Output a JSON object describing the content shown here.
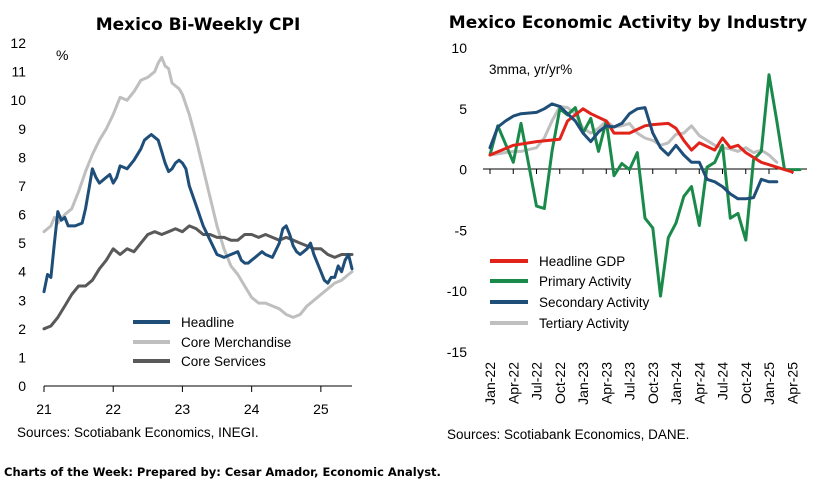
{
  "footer": "Charts of the Week: Prepared by: Cesar Amador, Economic Analyst.",
  "chart_data": [
    {
      "type": "line",
      "title": "Mexico Bi-Weekly CPI",
      "ylabel": "%",
      "ylim": [
        0,
        12
      ],
      "yticks": [
        "0",
        "1",
        "2",
        "3",
        "4",
        "5",
        "6",
        "7",
        "8",
        "9",
        "10",
        "11",
        "12"
      ],
      "xlim": [
        21,
        25.45
      ],
      "xticks": [
        "21",
        "22",
        "23",
        "24",
        "25"
      ],
      "source": "Sources: Scotiabank Economics, INEGI.",
      "grid": false,
      "legend_position": "bottom-center",
      "colors": {
        "Headline": "#1f4e79",
        "Core Merchandise": "#bfbfbf",
        "Core Services": "#595959"
      },
      "series": [
        {
          "name": "Headline",
          "x": [
            21.0,
            21.05,
            21.1,
            21.15,
            21.2,
            21.25,
            21.3,
            21.35,
            21.45,
            21.55,
            21.6,
            21.65,
            21.7,
            21.75,
            21.8,
            21.9,
            21.95,
            22.0,
            22.05,
            22.1,
            22.2,
            22.3,
            22.4,
            22.45,
            22.5,
            22.55,
            22.6,
            22.65,
            22.7,
            22.75,
            22.8,
            22.85,
            22.9,
            22.95,
            23.0,
            23.05,
            23.1,
            23.2,
            23.3,
            23.4,
            23.5,
            23.6,
            23.7,
            23.8,
            23.85,
            23.9,
            23.95,
            24.0,
            24.05,
            24.1,
            24.15,
            24.2,
            24.3,
            24.4,
            24.45,
            24.5,
            24.55,
            24.6,
            24.65,
            24.7,
            24.75,
            24.8,
            24.85,
            24.9,
            24.95,
            25.0,
            25.05,
            25.1,
            25.15,
            25.2,
            25.25,
            25.3,
            25.35,
            25.4,
            25.45
          ],
          "y": [
            3.3,
            3.9,
            3.8,
            5.0,
            6.1,
            5.8,
            5.9,
            5.6,
            5.6,
            5.7,
            6.2,
            6.9,
            7.6,
            7.3,
            7.1,
            7.3,
            7.4,
            7.1,
            7.3,
            7.7,
            7.6,
            7.9,
            8.3,
            8.6,
            8.7,
            8.8,
            8.7,
            8.6,
            8.2,
            7.8,
            7.5,
            7.6,
            7.8,
            7.9,
            7.8,
            7.6,
            7.0,
            6.3,
            5.6,
            5.1,
            4.6,
            4.5,
            4.6,
            4.7,
            4.4,
            4.3,
            4.3,
            4.4,
            4.5,
            4.6,
            4.7,
            4.6,
            4.5,
            5.0,
            5.5,
            5.6,
            5.3,
            4.9,
            4.7,
            4.6,
            4.7,
            4.8,
            5.0,
            4.6,
            4.3,
            4.0,
            3.7,
            3.6,
            3.8,
            3.8,
            4.2,
            4.0,
            4.4,
            4.6,
            4.1
          ]
        },
        {
          "name": "Core Merchandise",
          "x": [
            21.0,
            21.1,
            21.15,
            21.2,
            21.3,
            21.4,
            21.5,
            21.6,
            21.7,
            21.8,
            21.9,
            22.0,
            22.1,
            22.2,
            22.3,
            22.4,
            22.5,
            22.6,
            22.65,
            22.7,
            22.75,
            22.8,
            22.85,
            22.9,
            22.95,
            23.0,
            23.1,
            23.2,
            23.3,
            23.4,
            23.5,
            23.6,
            23.7,
            23.8,
            23.9,
            24.0,
            24.1,
            24.2,
            24.3,
            24.4,
            24.5,
            24.6,
            24.7,
            24.8,
            24.9,
            25.0,
            25.1,
            25.2,
            25.3,
            25.4,
            25.45
          ],
          "y": [
            5.4,
            5.6,
            5.9,
            5.7,
            6.0,
            6.2,
            6.8,
            7.5,
            8.1,
            8.6,
            9.0,
            9.5,
            10.1,
            10.0,
            10.3,
            10.7,
            10.8,
            11.0,
            11.3,
            11.5,
            11.2,
            11.1,
            10.6,
            10.5,
            10.4,
            10.2,
            9.5,
            8.6,
            7.6,
            6.6,
            5.6,
            4.8,
            4.2,
            3.9,
            3.5,
            3.1,
            2.9,
            2.9,
            2.8,
            2.7,
            2.5,
            2.4,
            2.5,
            2.8,
            3.0,
            3.2,
            3.4,
            3.6,
            3.7,
            3.9,
            4.0
          ]
        },
        {
          "name": "Core Services",
          "x": [
            21.0,
            21.1,
            21.2,
            21.3,
            21.4,
            21.5,
            21.6,
            21.7,
            21.8,
            21.9,
            22.0,
            22.1,
            22.2,
            22.3,
            22.4,
            22.5,
            22.6,
            22.7,
            22.8,
            22.9,
            23.0,
            23.1,
            23.2,
            23.3,
            23.4,
            23.5,
            23.6,
            23.7,
            23.8,
            23.9,
            24.0,
            24.1,
            24.2,
            24.3,
            24.4,
            24.5,
            24.6,
            24.7,
            24.8,
            24.9,
            25.0,
            25.1,
            25.2,
            25.3,
            25.4,
            25.45
          ],
          "y": [
            2.0,
            2.1,
            2.4,
            2.8,
            3.2,
            3.5,
            3.5,
            3.7,
            4.1,
            4.4,
            4.8,
            4.6,
            4.8,
            4.7,
            5.0,
            5.3,
            5.4,
            5.3,
            5.4,
            5.5,
            5.4,
            5.6,
            5.5,
            5.3,
            5.3,
            5.2,
            5.2,
            5.1,
            5.1,
            5.3,
            5.3,
            5.2,
            5.3,
            5.2,
            5.1,
            5.2,
            5.1,
            5.0,
            4.9,
            4.8,
            4.8,
            4.6,
            4.5,
            4.6,
            4.6,
            4.6
          ]
        }
      ]
    },
    {
      "type": "line",
      "title": "Mexico Economic Activity by Industry",
      "annotation": "3mma, yr/yr%",
      "ylim": [
        -15,
        10
      ],
      "yticks": [
        "10",
        "5",
        "0",
        "-5",
        "-10",
        "-15"
      ],
      "xticks": [
        "Jan-22",
        "Apr-22",
        "Jul-22",
        "Oct-22",
        "Jan-23",
        "Apr-23",
        "Jul-23",
        "Oct-23",
        "Jan-24",
        "Apr-24",
        "Jul-24",
        "Oct-24",
        "Jan-25",
        "Apr-25"
      ],
      "source": "Sources: Scotiabank Economics, DANE.",
      "grid": false,
      "legend_position": "bottom-center",
      "colors": {
        "Headline GDP": "#e2231a",
        "Primary Activity": "#1a8a4a",
        "Secondary Activity": "#1f4e79",
        "Tertiary Activity": "#bfbfbf"
      },
      "series": [
        {
          "name": "Headline GDP",
          "x": [
            0,
            3,
            6,
            9,
            10,
            12,
            13,
            15,
            16,
            18,
            20,
            21,
            23,
            24,
            25,
            26,
            27,
            29,
            30,
            31,
            32,
            33,
            35,
            36,
            37,
            39
          ],
          "y": [
            1.2,
            2.0,
            2.3,
            2.5,
            4.0,
            5.0,
            4.6,
            4.0,
            3.0,
            3.0,
            3.6,
            3.7,
            3.8,
            3.4,
            2.4,
            1.6,
            2.2,
            1.6,
            2.6,
            1.8,
            2.0,
            1.4,
            0.6,
            0.4,
            0.2,
            -0.2
          ]
        },
        {
          "name": "Primary Activity",
          "x": [
            0,
            1,
            3,
            4,
            6,
            7,
            8,
            9,
            10,
            11,
            12,
            13,
            14,
            15,
            16,
            17,
            18,
            19,
            20,
            21,
            22,
            23,
            24,
            25,
            26,
            27,
            28,
            29,
            30,
            31,
            32,
            33,
            34,
            35,
            36,
            37,
            38,
            39,
            40
          ],
          "y": [
            1.2,
            3.6,
            0.6,
            3.8,
            -3.0,
            -3.2,
            1.5,
            5.0,
            4.5,
            5.1,
            3.0,
            4.2,
            1.5,
            4.0,
            -0.5,
            0.5,
            0.0,
            1.4,
            -4.0,
            -4.8,
            -10.4,
            -5.6,
            -4.4,
            -2.2,
            -1.4,
            -4.6,
            0.2,
            0.6,
            2.0,
            -4.0,
            -3.6,
            -5.8,
            0.8,
            1.5,
            7.8,
            4.0,
            0.0,
            0.0,
            0.0
          ]
        },
        {
          "name": "Secondary Activity",
          "x": [
            0,
            1,
            2,
            3,
            4,
            6,
            7,
            8,
            9,
            10,
            11,
            12,
            13,
            14,
            15,
            16,
            17,
            18,
            19,
            20,
            21,
            22,
            23,
            24,
            25,
            26,
            27,
            28,
            29,
            30,
            31,
            32,
            33,
            34,
            35,
            36,
            37
          ],
          "y": [
            1.8,
            3.5,
            4.0,
            4.4,
            4.6,
            4.7,
            5.0,
            5.4,
            5.2,
            4.6,
            4.0,
            3.0,
            2.3,
            3.1,
            3.6,
            3.5,
            3.8,
            4.6,
            5.0,
            5.1,
            3.0,
            1.8,
            1.2,
            2.0,
            1.2,
            0.6,
            0.6,
            -0.8,
            -1.0,
            -1.4,
            -2.0,
            -2.4,
            -2.4,
            -2.3,
            -0.8,
            -1.0,
            -1.0
          ]
        },
        {
          "name": "Tertiary Activity",
          "x": [
            0,
            3,
            4,
            6,
            7,
            8,
            9,
            10,
            11,
            12,
            13,
            14,
            15,
            16,
            17,
            18,
            19,
            20,
            21,
            22,
            23,
            24,
            25,
            26,
            27,
            28,
            29,
            30,
            31,
            32,
            33,
            34,
            35,
            36,
            37
          ],
          "y": [
            1.2,
            1.5,
            1.5,
            1.8,
            2.6,
            4.0,
            5.2,
            5.1,
            4.6,
            3.4,
            3.0,
            3.4,
            4.0,
            3.5,
            3.6,
            3.8,
            3.0,
            2.6,
            2.4,
            2.0,
            2.2,
            2.9,
            3.0,
            3.6,
            2.8,
            2.4,
            2.0,
            1.8,
            1.7,
            1.5,
            1.8,
            1.4,
            1.6,
            1.2,
            0.6
          ]
        }
      ]
    }
  ]
}
